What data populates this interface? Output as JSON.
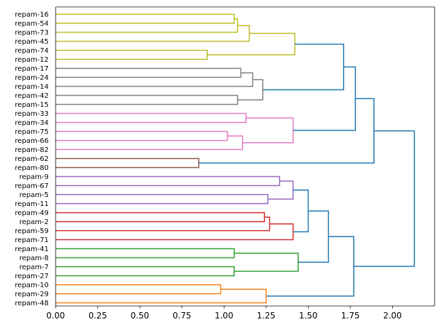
{
  "chart_data": {
    "type": "dendrogram",
    "orientation": "left",
    "title": "",
    "xlabel": "",
    "ylabel": "",
    "xlim": [
      0,
      2.25
    ],
    "xticks": [
      0.0,
      0.25,
      0.5,
      0.75,
      1.0,
      1.25,
      1.5,
      1.75,
      2.0
    ],
    "xtick_labels": [
      "0.00",
      "0.25",
      "0.50",
      "0.75",
      "1.00",
      "1.25",
      "1.50",
      "1.75",
      "2.00"
    ],
    "leaves": [
      "repam-16",
      "repam-54",
      "repam-73",
      "repam-45",
      "repam-74",
      "repam-12",
      "repam-17",
      "repam-24",
      "repam-14",
      "repam-42",
      "repam-15",
      "repam-33",
      "repam-34",
      "repam-75",
      "repam-66",
      "repam-82",
      "repam-62",
      "repam-80",
      "repam-9",
      "repam-67",
      "repam-5",
      "repam-11",
      "repam-49",
      "repam-2",
      "repam-59",
      "repam-71",
      "repam-41",
      "repam-8",
      "repam-7",
      "repam-27",
      "repam-10",
      "repam-29",
      "repam-48"
    ],
    "links": [
      {
        "id": "link-16-54",
        "a": 0,
        "b": 1,
        "height": 1.06,
        "color": "#bcbd22"
      },
      {
        "id": "link-a-73",
        "a": 0.5,
        "b": 2,
        "height": 1.08,
        "color": "#bcbd22"
      },
      {
        "id": "link-b-45",
        "a": 1.25,
        "b": 3,
        "height": 1.15,
        "color": "#bcbd22"
      },
      {
        "id": "link-74-12",
        "a": 4,
        "b": 5,
        "height": 0.9,
        "color": "#bcbd22"
      },
      {
        "id": "link-yellow-top",
        "a": 2.125,
        "b": 4.5,
        "height": 1.42,
        "color": "#bcbd22"
      },
      {
        "id": "link-17-24",
        "a": 6,
        "b": 7,
        "height": 1.1,
        "color": "#7f7f7f"
      },
      {
        "id": "link-c-14",
        "a": 6.5,
        "b": 8,
        "height": 1.17,
        "color": "#7f7f7f"
      },
      {
        "id": "link-42-15",
        "a": 9,
        "b": 10,
        "height": 1.08,
        "color": "#7f7f7f"
      },
      {
        "id": "link-gray-top",
        "a": 7.25,
        "b": 9.5,
        "height": 1.23,
        "color": "#7f7f7f"
      },
      {
        "id": "link-yellow-gray",
        "a": 3.3125,
        "b": 8.375,
        "height": 1.71,
        "color": "#1f77b4"
      },
      {
        "id": "link-33-34",
        "a": 11,
        "b": 12,
        "height": 1.13,
        "color": "#e377c2"
      },
      {
        "id": "link-75-66",
        "a": 13,
        "b": 14,
        "height": 1.02,
        "color": "#e377c2"
      },
      {
        "id": "link-d-82",
        "a": 13.5,
        "b": 15,
        "height": 1.11,
        "color": "#e377c2"
      },
      {
        "id": "link-pink-top",
        "a": 11.5,
        "b": 14.25,
        "height": 1.41,
        "color": "#e377c2"
      },
      {
        "id": "link-upper-pink",
        "a": 5.84375,
        "b": 12.875,
        "height": 1.78,
        "color": "#1f77b4"
      },
      {
        "id": "link-62-80",
        "a": 16,
        "b": 17,
        "height": 0.85,
        "color": "#8c564b"
      },
      {
        "id": "link-upper-brown",
        "a": 9.359375,
        "b": 16.5,
        "height": 1.89,
        "color": "#1f77b4"
      },
      {
        "id": "link-9-67",
        "a": 18,
        "b": 19,
        "height": 1.33,
        "color": "#9467bd"
      },
      {
        "id": "link-5-11",
        "a": 20,
        "b": 21,
        "height": 1.26,
        "color": "#9467bd"
      },
      {
        "id": "link-purple-top",
        "a": 18.5,
        "b": 20.5,
        "height": 1.41,
        "color": "#9467bd"
      },
      {
        "id": "link-49-2",
        "a": 22,
        "b": 23,
        "height": 1.24,
        "color": "#d62728"
      },
      {
        "id": "link-e-59",
        "a": 22.5,
        "b": 24,
        "height": 1.27,
        "color": "#d62728"
      },
      {
        "id": "link-f-71",
        "a": 23.25,
        "b": 25,
        "height": 1.41,
        "color": "#d62728"
      },
      {
        "id": "link-purple-red",
        "a": 19.5,
        "b": 24.125,
        "height": 1.5,
        "color": "#1f77b4"
      },
      {
        "id": "link-41-8",
        "a": 26,
        "b": 27,
        "height": 1.06,
        "color": "#2ca02c"
      },
      {
        "id": "link-7-27",
        "a": 28,
        "b": 29,
        "height": 1.06,
        "color": "#2ca02c"
      },
      {
        "id": "link-green-top",
        "a": 26.5,
        "b": 28.5,
        "height": 1.44,
        "color": "#2ca02c"
      },
      {
        "id": "link-mid-green",
        "a": 21.8125,
        "b": 27.5,
        "height": 1.62,
        "color": "#1f77b4"
      },
      {
        "id": "link-10-29",
        "a": 30,
        "b": 31,
        "height": 0.98,
        "color": "#ff7f0e"
      },
      {
        "id": "link-g-48",
        "a": 30.5,
        "b": 32,
        "height": 1.25,
        "color": "#ff7f0e"
      },
      {
        "id": "link-lower-orange",
        "a": 24.65625,
        "b": 31.25,
        "height": 1.77,
        "color": "#1f77b4"
      },
      {
        "id": "link-root",
        "a": 12.9296875,
        "b": 27.953125,
        "height": 2.13,
        "color": "#1f77b4"
      }
    ]
  }
}
